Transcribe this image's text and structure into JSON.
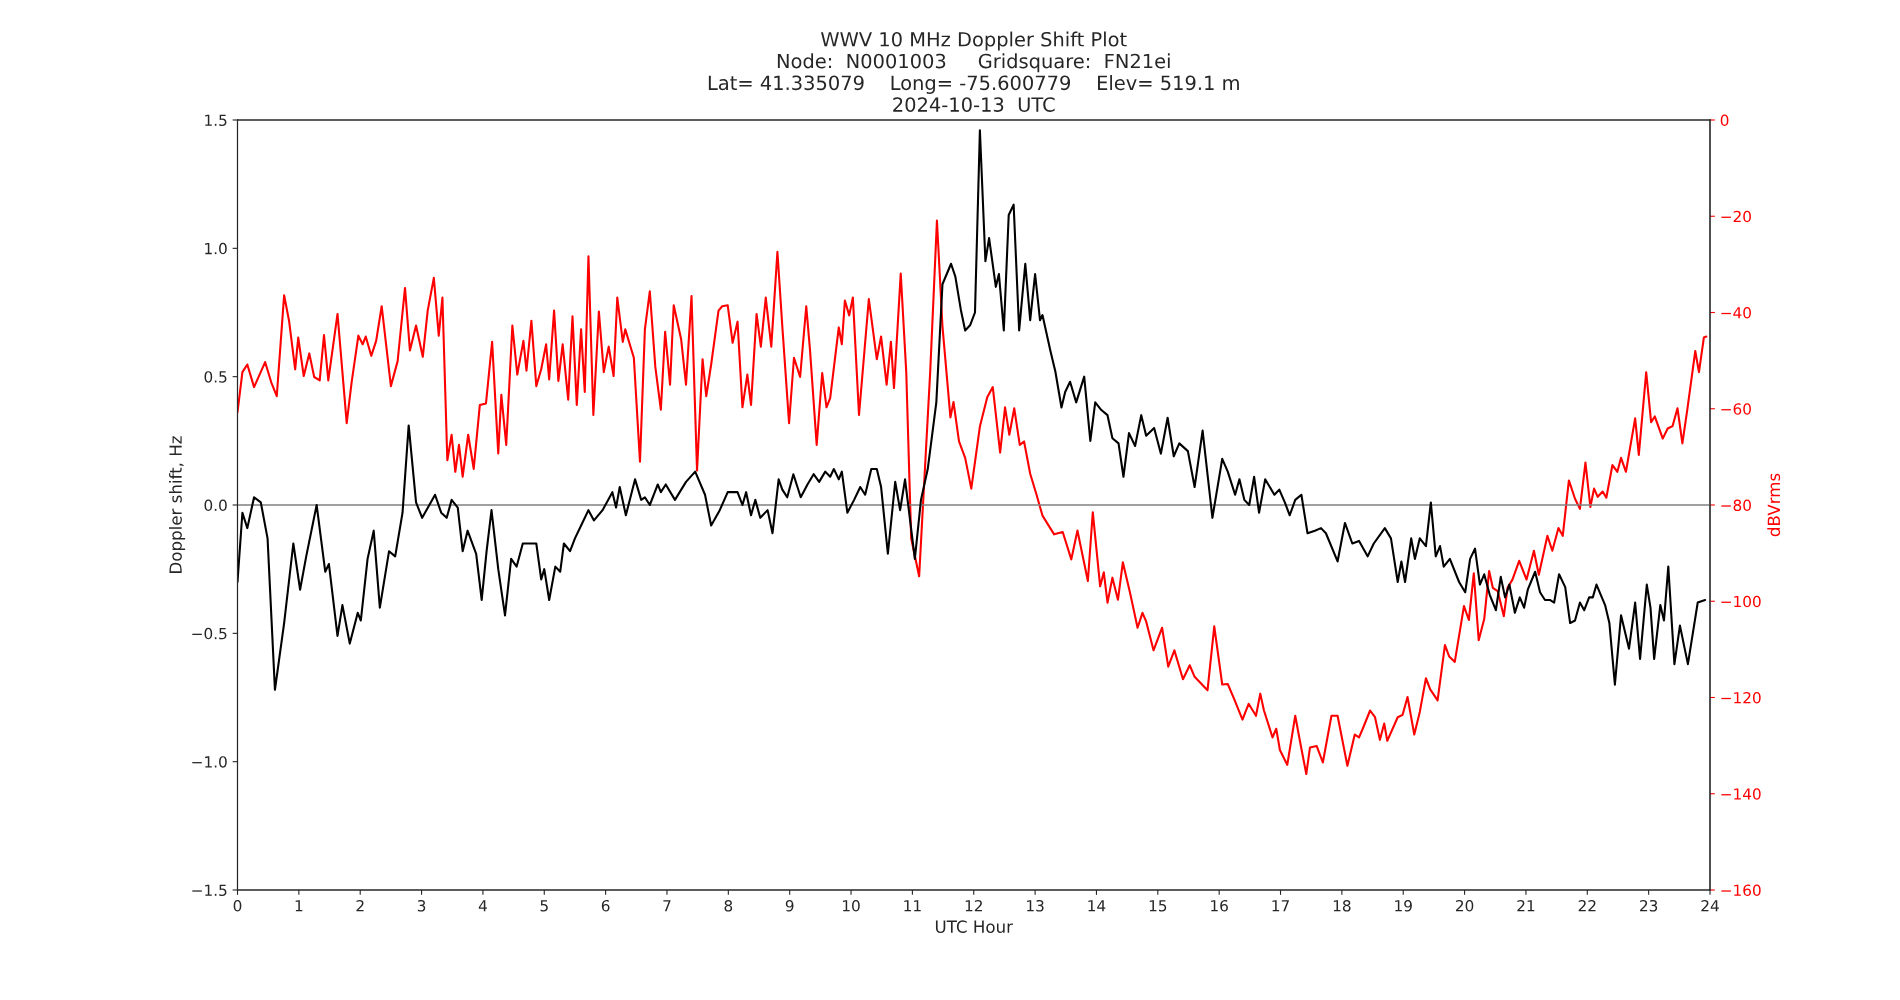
{
  "chart_data": {
    "type": "line",
    "title": "WWV 10 MHz Doppler Shift Plot\nNode:  N0001003     Gridsquare:  FN21ei\nLat= 41.335079    Long= -75.600779    Elev= 519.1 m\n2024-10-13  UTC",
    "xlabel": "UTC Hour",
    "ylabel": "Doppler shift, Hz",
    "y2label": "dBVrms",
    "xlim": [
      0,
      24
    ],
    "xticks": [
      0,
      1,
      2,
      3,
      4,
      5,
      6,
      7,
      8,
      9,
      10,
      11,
      12,
      13,
      14,
      15,
      16,
      17,
      18,
      19,
      20,
      21,
      22,
      23,
      24
    ],
    "ylim": [
      -1.5,
      1.5
    ],
    "yticks": [
      {
        "value": -1.5,
        "label": "−1.5"
      },
      {
        "value": -1.0,
        "label": "−1.0"
      },
      {
        "value": -0.5,
        "label": "−0.5"
      },
      {
        "value": 0.0,
        "label": "0.0"
      },
      {
        "value": 0.5,
        "label": "0.5"
      },
      {
        "value": 1.0,
        "label": "1.0"
      },
      {
        "value": 1.5,
        "label": "1.5"
      }
    ],
    "y2lim": [
      -160,
      0
    ],
    "y2ticks": [
      {
        "value": -160,
        "label": "−160"
      },
      {
        "value": -140,
        "label": "−140"
      },
      {
        "value": -120,
        "label": "−120"
      },
      {
        "value": -100,
        "label": "−100"
      },
      {
        "value": -80,
        "label": "−80"
      },
      {
        "value": -60,
        "label": "−60"
      },
      {
        "value": -40,
        "label": "−40"
      },
      {
        "value": -20,
        "label": "−20"
      },
      0
    ],
    "ref_lines": [
      {
        "axis": "y",
        "value": 0,
        "color": "#808080"
      }
    ],
    "grid": false,
    "series": [
      {
        "color": "#000000",
        "x": [
          0,
          0.08,
          0.16,
          0.27,
          0.38,
          0.49,
          0.61,
          0.76,
          0.91,
          1.02,
          1.12,
          1.29,
          1.43,
          1.49,
          1.63,
          1.71,
          1.83,
          1.96,
          2.01,
          2.12,
          2.22,
          2.32,
          2.47,
          2.57,
          2.69,
          2.79,
          2.91,
          3.01,
          3.22,
          3.32,
          3.41,
          3.49,
          3.59,
          3.67,
          3.75,
          3.89,
          3.98,
          4.06,
          4.14,
          4.25,
          4.36,
          4.46,
          4.55,
          4.65,
          4.77,
          4.87,
          4.95,
          5.0,
          5.08,
          5.18,
          5.26,
          5.32,
          5.42,
          5.5,
          5.62,
          5.72,
          5.81,
          5.95,
          6.11,
          6.17,
          6.23,
          6.33,
          6.48,
          6.58,
          6.64,
          6.72,
          6.85,
          6.9,
          6.98,
          7.13,
          7.31,
          7.46,
          7.62,
          7.72,
          7.86,
          7.99,
          8.15,
          8.23,
          8.29,
          8.37,
          8.44,
          8.52,
          8.64,
          8.72,
          8.82,
          8.88,
          8.96,
          9.06,
          9.18,
          9.29,
          9.39,
          9.48,
          9.58,
          9.66,
          9.72,
          9.8,
          9.85,
          9.94,
          10.05,
          10.15,
          10.23,
          10.33,
          10.42,
          10.49,
          10.6,
          10.72,
          10.8,
          10.88,
          11.04,
          11.14,
          11.25,
          11.39,
          11.49,
          11.63,
          11.7,
          11.79,
          11.86,
          11.94,
          12.02,
          12.1,
          12.19,
          12.25,
          12.36,
          12.41,
          12.49,
          12.57,
          12.65,
          12.74,
          12.84,
          12.92,
          13.0,
          13.08,
          13.12,
          13.25,
          13.33,
          13.43,
          13.49,
          13.57,
          13.67,
          13.8,
          13.9,
          13.98,
          14.08,
          14.18,
          14.26,
          14.36,
          14.44,
          14.53,
          14.63,
          14.73,
          14.81,
          14.94,
          15.05,
          15.16,
          15.26,
          15.35,
          15.49,
          15.6,
          15.73,
          15.89,
          16.05,
          16.14,
          16.26,
          16.33,
          16.41,
          16.49,
          16.57,
          16.65,
          16.75,
          16.9,
          16.98,
          17.07,
          17.15,
          17.24,
          17.34,
          17.44,
          17.56,
          17.66,
          17.74,
          17.93,
          18.05,
          18.17,
          18.28,
          18.42,
          18.52,
          18.7,
          18.8,
          18.91,
          18.97,
          19.03,
          19.13,
          19.19,
          19.27,
          19.37,
          19.45,
          19.53,
          19.6,
          19.66,
          19.76,
          19.91,
          20.01,
          20.09,
          20.17,
          20.25,
          20.32,
          20.41,
          20.51,
          20.59,
          20.66,
          20.73,
          20.82,
          20.9,
          20.97,
          21.03,
          21.15,
          21.23,
          21.31,
          21.39,
          21.46,
          21.54,
          21.64,
          21.72,
          21.8,
          21.88,
          21.95,
          22.03,
          22.09,
          22.15,
          22.29,
          22.36,
          22.45,
          22.55,
          22.68,
          22.78,
          22.86,
          22.97,
          23.03,
          23.09,
          23.19,
          23.25,
          23.32,
          23.42,
          23.51,
          23.64,
          23.8,
          23.92
        ],
        "values": [
          -0.3,
          -0.03,
          -0.09,
          0.03,
          0.01,
          -0.13,
          -0.72,
          -0.46,
          -0.15,
          -0.33,
          -0.2,
          0.0,
          -0.26,
          -0.23,
          -0.51,
          -0.39,
          -0.54,
          -0.42,
          -0.45,
          -0.21,
          -0.1,
          -0.4,
          -0.18,
          -0.2,
          -0.03,
          0.31,
          0.01,
          -0.05,
          0.04,
          -0.03,
          -0.05,
          0.02,
          -0.01,
          -0.18,
          -0.1,
          -0.19,
          -0.37,
          -0.18,
          -0.02,
          -0.25,
          -0.43,
          -0.21,
          -0.24,
          -0.15,
          -0.15,
          -0.15,
          -0.29,
          -0.25,
          -0.37,
          -0.24,
          -0.26,
          -0.15,
          -0.18,
          -0.13,
          -0.07,
          -0.02,
          -0.06,
          -0.02,
          0.05,
          -0.01,
          0.07,
          -0.04,
          0.1,
          0.02,
          0.03,
          0.0,
          0.08,
          0.05,
          0.08,
          0.02,
          0.09,
          0.13,
          0.04,
          -0.08,
          -0.02,
          0.05,
          0.05,
          0.0,
          0.05,
          -0.04,
          0.02,
          -0.05,
          -0.02,
          -0.11,
          0.1,
          0.06,
          0.03,
          0.12,
          0.03,
          0.08,
          0.12,
          0.09,
          0.13,
          0.11,
          0.14,
          0.1,
          0.13,
          -0.03,
          0.02,
          0.07,
          0.04,
          0.14,
          0.14,
          0.07,
          -0.19,
          0.09,
          -0.02,
          0.1,
          -0.21,
          0.02,
          0.14,
          0.4,
          0.86,
          0.94,
          0.89,
          0.76,
          0.68,
          0.7,
          0.75,
          1.46,
          0.95,
          1.04,
          0.85,
          0.9,
          0.68,
          1.13,
          1.17,
          0.68,
          0.94,
          0.72,
          0.9,
          0.72,
          0.74,
          0.6,
          0.52,
          0.38,
          0.44,
          0.48,
          0.4,
          0.5,
          0.25,
          0.4,
          0.37,
          0.35,
          0.26,
          0.24,
          0.11,
          0.28,
          0.23,
          0.35,
          0.27,
          0.3,
          0.2,
          0.34,
          0.19,
          0.24,
          0.21,
          0.07,
          0.29,
          -0.05,
          0.18,
          0.13,
          0.04,
          0.1,
          0.02,
          0.0,
          0.11,
          -0.03,
          0.1,
          0.04,
          0.06,
          0.01,
          -0.04,
          0.02,
          0.04,
          -0.11,
          -0.1,
          -0.09,
          -0.11,
          -0.22,
          -0.07,
          -0.15,
          -0.14,
          -0.2,
          -0.15,
          -0.09,
          -0.13,
          -0.3,
          -0.22,
          -0.3,
          -0.13,
          -0.21,
          -0.13,
          -0.16,
          0.01,
          -0.2,
          -0.16,
          -0.24,
          -0.21,
          -0.3,
          -0.34,
          -0.21,
          -0.17,
          -0.31,
          -0.27,
          -0.35,
          -0.41,
          -0.28,
          -0.36,
          -0.31,
          -0.42,
          -0.36,
          -0.4,
          -0.33,
          -0.26,
          -0.34,
          -0.37,
          -0.37,
          -0.38,
          -0.27,
          -0.32,
          -0.46,
          -0.45,
          -0.38,
          -0.41,
          -0.36,
          -0.36,
          -0.31,
          -0.39,
          -0.46,
          -0.7,
          -0.43,
          -0.56,
          -0.38,
          -0.6,
          -0.31,
          -0.4,
          -0.6,
          -0.39,
          -0.45,
          -0.24,
          -0.62,
          -0.47,
          -0.62,
          -0.38,
          -0.37
        ]
      },
      {
        "color": "#ff0000",
        "axis": "y2",
        "x": [
          0,
          0.08,
          0.16,
          0.27,
          0.45,
          0.55,
          0.64,
          0.76,
          0.84,
          0.94,
          0.99,
          1.08,
          1.17,
          1.25,
          1.34,
          1.41,
          1.48,
          1.63,
          1.78,
          1.86,
          1.97,
          2.04,
          2.09,
          2.18,
          2.26,
          2.35,
          2.5,
          2.61,
          2.73,
          2.81,
          2.91,
          3.02,
          3.1,
          3.2,
          3.28,
          3.34,
          3.42,
          3.49,
          3.55,
          3.61,
          3.67,
          3.76,
          3.85,
          3.95,
          4.05,
          4.15,
          4.25,
          4.3,
          4.38,
          4.48,
          4.56,
          4.66,
          4.71,
          4.79,
          4.87,
          4.95,
          5.03,
          5.08,
          5.16,
          5.23,
          5.3,
          5.39,
          5.46,
          5.53,
          5.6,
          5.66,
          5.72,
          5.8,
          5.89,
          5.97,
          6.05,
          6.13,
          6.19,
          6.28,
          6.32,
          6.46,
          6.56,
          6.64,
          6.72,
          6.81,
          6.9,
          6.97,
          7.05,
          7.11,
          7.23,
          7.31,
          7.4,
          7.49,
          7.58,
          7.64,
          7.72,
          7.84,
          7.9,
          7.99,
          8.07,
          8.15,
          8.23,
          8.31,
          8.37,
          8.46,
          8.53,
          8.61,
          8.7,
          8.8,
          8.88,
          8.99,
          9.07,
          9.17,
          9.27,
          9.33,
          9.44,
          9.53,
          9.6,
          9.66,
          9.8,
          9.85,
          9.9,
          9.97,
          10.03,
          10.13,
          10.29,
          10.42,
          10.49,
          10.58,
          10.65,
          10.7,
          10.81,
          10.9,
          10.98,
          11.11,
          11.21,
          11.29,
          11.4,
          11.49,
          11.62,
          11.67,
          11.76,
          11.86,
          11.96,
          12.1,
          12.22,
          12.31,
          12.43,
          12.51,
          12.58,
          12.66,
          12.75,
          12.82,
          12.92,
          13.02,
          13.12,
          13.31,
          13.45,
          13.59,
          13.69,
          13.86,
          13.94,
          14.06,
          14.12,
          14.18,
          14.26,
          14.35,
          14.43,
          14.55,
          14.67,
          14.75,
          14.81,
          14.93,
          15.07,
          15.17,
          15.27,
          15.41,
          15.52,
          15.6,
          15.81,
          15.92,
          16.05,
          16.14,
          16.24,
          16.38,
          16.48,
          16.6,
          16.67,
          16.73,
          16.87,
          16.93,
          16.99,
          17.11,
          17.24,
          17.32,
          17.42,
          17.48,
          17.59,
          17.69,
          17.83,
          17.93,
          17.99,
          18.09,
          18.21,
          18.28,
          18.34,
          18.46,
          18.54,
          18.62,
          18.69,
          18.74,
          18.91,
          18.99,
          19.07,
          19.18,
          19.27,
          19.37,
          19.44,
          19.56,
          19.68,
          19.75,
          19.84,
          19.99,
          20.07,
          20.15,
          20.23,
          20.32,
          20.4,
          20.46,
          20.54,
          20.64,
          20.7,
          20.78,
          20.89,
          21.01,
          21.13,
          21.21,
          21.35,
          21.43,
          21.53,
          21.6,
          21.7,
          21.8,
          21.88,
          21.97,
          22.05,
          22.11,
          22.17,
          22.25,
          22.31,
          22.41,
          22.49,
          22.55,
          22.63,
          22.78,
          22.84,
          22.96,
          23.04,
          23.1,
          23.23,
          23.31,
          23.39,
          23.47,
          23.55,
          23.63,
          23.76,
          23.82,
          23.9,
          23.94
        ],
        "values": [
          -60.7,
          -52.4,
          -50.8,
          -55.5,
          -50.3,
          -54.5,
          -57.4,
          -36.4,
          -41.7,
          -51.8,
          -45.2,
          -53.2,
          -48.5,
          -53.4,
          -54.1,
          -44.7,
          -54.1,
          -40.3,
          -63.0,
          -54.5,
          -44.8,
          -46.6,
          -45.0,
          -49.0,
          -45.9,
          -38.7,
          -55.3,
          -50.1,
          -34.9,
          -47.9,
          -42.7,
          -49.2,
          -39.6,
          -32.8,
          -44.8,
          -36.9,
          -70.7,
          -65.4,
          -73.1,
          -67.5,
          -74.1,
          -65.4,
          -72.5,
          -59.2,
          -58.9,
          -46.1,
          -69.3,
          -57.1,
          -67.5,
          -42.7,
          -52.9,
          -45.9,
          -52.1,
          -41.7,
          -55.3,
          -51.8,
          -46.6,
          -53.9,
          -39.6,
          -54.2,
          -46.6,
          -58.1,
          -40.8,
          -59.2,
          -43.5,
          -56.5,
          -28.3,
          -61.3,
          -39.8,
          -52.4,
          -47.1,
          -53.2,
          -36.9,
          -46.1,
          -43.5,
          -49.4,
          -71.0,
          -43.5,
          -35.6,
          -51.3,
          -60.2,
          -44.0,
          -55.0,
          -38.5,
          -45.5,
          -55.0,
          -36.6,
          -72.8,
          -49.7,
          -57.4,
          -50.8,
          -39.6,
          -38.7,
          -38.5,
          -46.3,
          -41.9,
          -59.7,
          -52.9,
          -59.2,
          -40.3,
          -47.1,
          -36.9,
          -47.1,
          -27.4,
          -42.9,
          -63.0,
          -49.4,
          -53.4,
          -38.7,
          -47.6,
          -67.5,
          -52.6,
          -59.7,
          -57.8,
          -43.1,
          -46.6,
          -37.5,
          -40.6,
          -36.9,
          -61.3,
          -37.2,
          -49.7,
          -45.0,
          -55.0,
          -46.1,
          -55.7,
          -31.9,
          -52.4,
          -86.9,
          -94.8,
          -71.2,
          -52.4,
          -20.9,
          -42.9,
          -61.8,
          -58.6,
          -66.8,
          -70.2,
          -76.6,
          -63.7,
          -57.6,
          -55.5,
          -69.1,
          -59.7,
          -65.4,
          -59.9,
          -67.5,
          -66.8,
          -73.5,
          -77.7,
          -82.2,
          -86.1,
          -85.6,
          -91.3,
          -85.3,
          -95.8,
          -81.5,
          -96.9,
          -94.0,
          -100.3,
          -95.1,
          -99.7,
          -91.9,
          -98.4,
          -105.5,
          -102.4,
          -104.2,
          -110.2,
          -105.5,
          -113.6,
          -110.2,
          -116.2,
          -113.3,
          -115.7,
          -118.5,
          -105.2,
          -117.3,
          -117.2,
          -120.2,
          -124.6,
          -121.3,
          -123.8,
          -119.2,
          -122.7,
          -128.3,
          -126.5,
          -130.9,
          -134.0,
          -123.8,
          -129.3,
          -135.9,
          -130.4,
          -130.1,
          -133.5,
          -123.8,
          -123.8,
          -127.7,
          -134.2,
          -127.7,
          -128.3,
          -126.5,
          -122.7,
          -124.1,
          -128.8,
          -125.4,
          -129.0,
          -124.1,
          -123.6,
          -119.9,
          -127.7,
          -123.0,
          -116.0,
          -118.3,
          -120.6,
          -109.1,
          -111.5,
          -112.6,
          -101.0,
          -103.9,
          -94.2,
          -108.1,
          -103.7,
          -93.7,
          -97.2,
          -97.9,
          -103.1,
          -97.2,
          -95.5,
          -91.6,
          -95.5,
          -89.5,
          -94.5,
          -86.4,
          -89.5,
          -84.8,
          -86.4,
          -74.9,
          -78.7,
          -80.8,
          -71.2,
          -80.4,
          -76.6,
          -78.3,
          -77.2,
          -78.5,
          -71.7,
          -73.1,
          -70.2,
          -73.1,
          -62.0,
          -69.6,
          -52.4,
          -62.8,
          -61.6,
          -66.2,
          -64.1,
          -63.6,
          -59.9,
          -67.2,
          -60.2,
          -48.0,
          -52.4,
          -45.2,
          -45.0
        ]
      }
    ]
  }
}
